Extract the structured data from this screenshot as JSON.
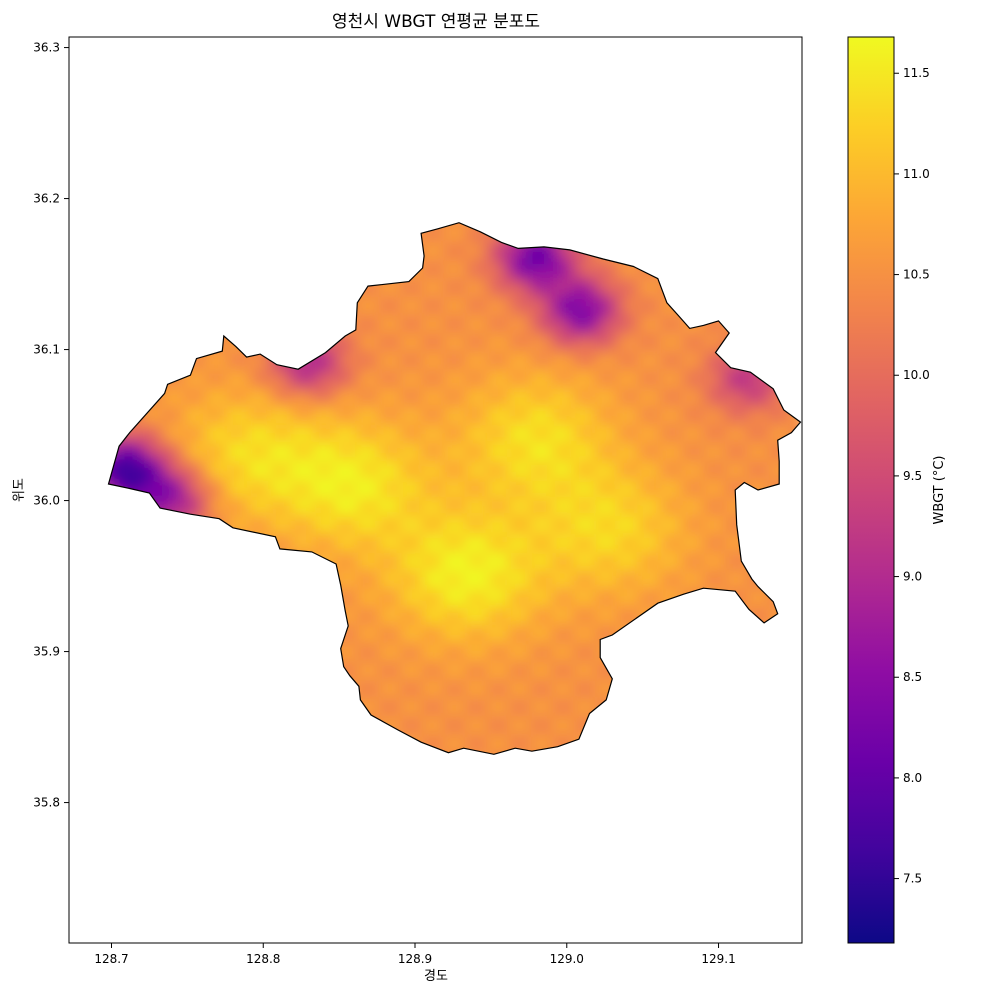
{
  "chart_data": {
    "type": "heatmap",
    "title": "영천시 WBGT 연평균 분포도",
    "xlabel": "경도",
    "ylabel": "위도",
    "xlim": [
      128.672,
      129.155
    ],
    "ylim": [
      35.707,
      36.307
    ],
    "x_ticks": [
      {
        "value": 128.7,
        "label": "128.7"
      },
      {
        "value": 128.8,
        "label": "128.8"
      },
      {
        "value": 128.9,
        "label": "128.9"
      },
      {
        "value": 129.0,
        "label": "129.0"
      },
      {
        "value": 129.1,
        "label": "129.1"
      }
    ],
    "y_ticks": [
      {
        "value": 35.8,
        "label": "35.8"
      },
      {
        "value": 35.9,
        "label": "35.9"
      },
      {
        "value": 36.0,
        "label": "36.0"
      },
      {
        "value": 36.1,
        "label": "36.1"
      },
      {
        "value": 36.2,
        "label": "36.2"
      },
      {
        "value": 36.3,
        "label": "36.3"
      }
    ],
    "grid": false,
    "colormap": "plasma",
    "colorbar": {
      "label": "WBGT (°C)",
      "range": [
        7.18,
        11.68
      ],
      "ticks": [
        {
          "value": 7.5,
          "label": "7.5"
        },
        {
          "value": 8.0,
          "label": "8.0"
        },
        {
          "value": 8.5,
          "label": "8.5"
        },
        {
          "value": 9.0,
          "label": "9.0"
        },
        {
          "value": 9.5,
          "label": "9.5"
        },
        {
          "value": 10.0,
          "label": "10.0"
        },
        {
          "value": 10.5,
          "label": "10.5"
        },
        {
          "value": 11.0,
          "label": "11.0"
        },
        {
          "value": 11.5,
          "label": "11.5"
        }
      ],
      "stops": [
        "#0d0887",
        "#41049d",
        "#6a00a8",
        "#8f0da4",
        "#b12a90",
        "#cc4778",
        "#e16462",
        "#f2844b",
        "#fca636",
        "#fcce25",
        "#f0f921"
      ]
    },
    "boundary": [
      [
        128.698,
        36.011
      ],
      [
        128.705,
        36.036
      ],
      [
        128.712,
        36.045
      ],
      [
        128.735,
        36.071
      ],
      [
        128.737,
        36.077
      ],
      [
        128.752,
        36.083
      ],
      [
        128.756,
        36.094
      ],
      [
        128.773,
        36.099
      ],
      [
        128.774,
        36.109
      ],
      [
        128.782,
        36.102
      ],
      [
        128.789,
        36.095
      ],
      [
        128.798,
        36.097
      ],
      [
        128.809,
        36.09
      ],
      [
        128.823,
        36.087
      ],
      [
        128.841,
        36.098
      ],
      [
        128.854,
        36.109
      ],
      [
        128.861,
        36.113
      ],
      [
        128.862,
        36.131
      ],
      [
        128.869,
        36.142
      ],
      [
        128.896,
        36.145
      ],
      [
        128.905,
        36.154
      ],
      [
        128.906,
        36.162
      ],
      [
        128.904,
        36.177
      ],
      [
        128.915,
        36.18
      ],
      [
        128.929,
        36.184
      ],
      [
        128.943,
        36.178
      ],
      [
        128.957,
        36.171
      ],
      [
        128.968,
        36.167
      ],
      [
        128.985,
        36.168
      ],
      [
        129.002,
        36.166
      ],
      [
        129.024,
        36.16
      ],
      [
        129.044,
        36.155
      ],
      [
        129.06,
        36.147
      ],
      [
        129.066,
        36.131
      ],
      [
        129.074,
        36.122
      ],
      [
        129.081,
        36.114
      ],
      [
        129.09,
        36.116
      ],
      [
        129.1,
        36.119
      ],
      [
        129.107,
        36.111
      ],
      [
        129.098,
        36.098
      ],
      [
        129.108,
        36.088
      ],
      [
        129.121,
        36.085
      ],
      [
        129.136,
        36.074
      ],
      [
        129.143,
        36.06
      ],
      [
        129.154,
        36.052
      ],
      [
        129.148,
        36.045
      ],
      [
        129.139,
        36.04
      ],
      [
        129.14,
        36.026
      ],
      [
        129.14,
        36.011
      ],
      [
        129.126,
        36.007
      ],
      [
        129.117,
        36.012
      ],
      [
        129.111,
        36.007
      ],
      [
        129.112,
        35.984
      ],
      [
        129.115,
        35.96
      ],
      [
        129.122,
        35.948
      ],
      [
        129.126,
        35.943
      ],
      [
        129.136,
        35.933
      ],
      [
        129.139,
        35.925
      ],
      [
        129.13,
        35.919
      ],
      [
        129.12,
        35.928
      ],
      [
        129.111,
        35.94
      ],
      [
        129.09,
        35.942
      ],
      [
        129.077,
        35.938
      ],
      [
        129.06,
        35.932
      ],
      [
        129.03,
        35.911
      ],
      [
        129.022,
        35.908
      ],
      [
        129.022,
        35.896
      ],
      [
        129.03,
        35.882
      ],
      [
        129.026,
        35.868
      ],
      [
        129.015,
        35.859
      ],
      [
        129.008,
        35.842
      ],
      [
        128.994,
        35.837
      ],
      [
        128.977,
        35.834
      ],
      [
        128.966,
        35.836
      ],
      [
        128.952,
        35.832
      ],
      [
        128.932,
        35.836
      ],
      [
        128.922,
        35.833
      ],
      [
        128.904,
        35.84
      ],
      [
        128.889,
        35.848
      ],
      [
        128.871,
        35.858
      ],
      [
        128.864,
        35.868
      ],
      [
        128.863,
        35.877
      ],
      [
        128.857,
        35.884
      ],
      [
        128.853,
        35.89
      ],
      [
        128.851,
        35.902
      ],
      [
        128.856,
        35.917
      ],
      [
        128.854,
        35.927
      ],
      [
        128.851,
        35.944
      ],
      [
        128.848,
        35.958
      ],
      [
        128.832,
        35.966
      ],
      [
        128.811,
        35.968
      ],
      [
        128.808,
        35.976
      ],
      [
        128.78,
        35.982
      ],
      [
        128.771,
        35.988
      ],
      [
        128.752,
        35.991
      ],
      [
        128.732,
        35.995
      ],
      [
        128.725,
        36.005
      ],
      [
        128.712,
        36.008
      ],
      [
        128.698,
        36.011
      ]
    ],
    "field_description_values": {
      "base": 10.5,
      "hotspots": [
        {
          "x": 128.935,
          "y": 35.95,
          "value": 11.6
        },
        {
          "x": 128.86,
          "y": 36.01,
          "value": 11.5
        },
        {
          "x": 128.98,
          "y": 36.04,
          "value": 11.4
        },
        {
          "x": 129.03,
          "y": 35.98,
          "value": 11.3
        },
        {
          "x": 128.79,
          "y": 36.03,
          "value": 11.3
        }
      ],
      "coldspots": [
        {
          "x": 128.71,
          "y": 36.02,
          "value": 7.6
        },
        {
          "x": 128.74,
          "y": 36.0,
          "value": 8.6
        },
        {
          "x": 128.98,
          "y": 36.16,
          "value": 8.1
        },
        {
          "x": 129.01,
          "y": 36.125,
          "value": 8.3
        },
        {
          "x": 128.83,
          "y": 36.09,
          "value": 8.9
        },
        {
          "x": 129.12,
          "y": 36.08,
          "value": 9.2
        }
      ]
    }
  }
}
